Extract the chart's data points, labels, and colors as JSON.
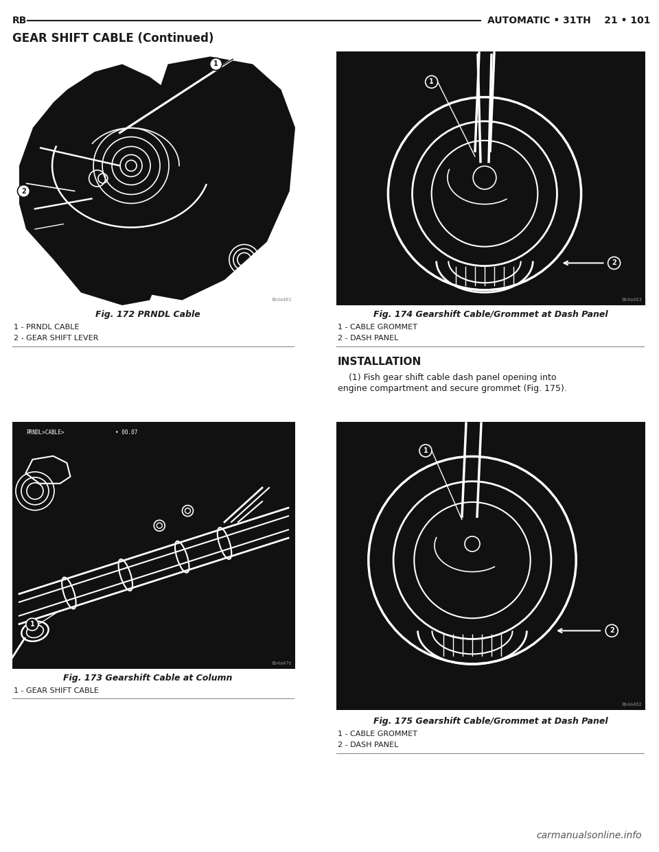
{
  "bg_color": "#ffffff",
  "text_color": "#1a1a1a",
  "line_color": "#1a1a1a",
  "draw_color": "#111111",
  "header_left": "RB",
  "header_right": "AUTOMATIC • 31TH    21 • 101",
  "section_title": "GEAR SHIFT CABLE (Continued)",
  "fig172_caption": "Fig. 172 PRNDL Cable",
  "fig172_labels": [
    "1 - PRNDL CABLE",
    "2 - GEAR SHIFT LEVER"
  ],
  "fig174_caption": "Fig. 174 Gearshift Cable/Grommet at Dash Panel",
  "fig174_labels": [
    "1 - CABLE GROMMET",
    "2 - DASH PANEL"
  ],
  "fig173_caption": "Fig. 173 Gearshift Cable at Column",
  "fig173_labels": [
    "1 - GEAR SHIFT CABLE"
  ],
  "fig175_caption": "Fig. 175 Gearshift Cable/Grommet at Dash Panel",
  "fig175_labels": [
    "1 - CABLE GROMMET",
    "2 - DASH PANEL"
  ],
  "installation_title": "INSTALLATION",
  "installation_line1": "    (1) Fish gear shift cable dash panel opening into",
  "installation_line2": "engine compartment and secure grommet (Fig. 175).",
  "watermark": "carmanualsonline.info",
  "fig_id_172": "8b4a461",
  "fig_id_174": "8b4a463",
  "fig_id_173": "8b4a47e",
  "fig_id_175": "8b4a462",
  "header_fontsize": 10,
  "section_fontsize": 12,
  "caption_fontsize": 9,
  "label_fontsize": 8,
  "install_title_fontsize": 11,
  "install_text_fontsize": 9,
  "watermark_fontsize": 10
}
